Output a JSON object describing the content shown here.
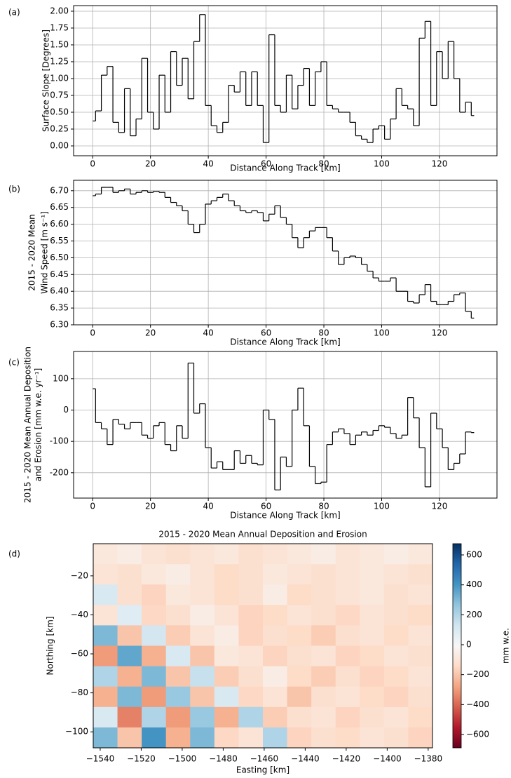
{
  "chart_data": [
    {
      "type": "line",
      "step": true,
      "panel_label": "(a)",
      "xlabel": "Distance Along Track [km]",
      "ylabel": [
        "Surface Slope [Degrees]"
      ],
      "color": "#000000",
      "grid": true,
      "xlim": [
        -6.6,
        139.9
      ],
      "ylim": [
        -0.146,
        2.083
      ],
      "xticks": [
        0,
        20,
        40,
        60,
        80,
        100,
        120
      ],
      "yticks": [
        {
          "value": 0,
          "label": "0.00"
        },
        0.25,
        {
          "value": 0.5,
          "label": "0.50"
        },
        0.75,
        {
          "value": 1,
          "label": "1.00"
        },
        1.25,
        {
          "value": 1.5,
          "label": "1.50"
        },
        1.75,
        {
          "value": 2,
          "label": "2.00"
        }
      ],
      "x": [
        0,
        2,
        4,
        6,
        8,
        10,
        12,
        14,
        16,
        18,
        20,
        22,
        24,
        26,
        28,
        30,
        32,
        34,
        36,
        38,
        40,
        42,
        44,
        46,
        48,
        50,
        52,
        54,
        56,
        58,
        60,
        62,
        64,
        66,
        68,
        70,
        72,
        74,
        76,
        78,
        80,
        82,
        84,
        86,
        88,
        90,
        92,
        94,
        96,
        98,
        100,
        102,
        104,
        106,
        108,
        110,
        112,
        114,
        116,
        118,
        120,
        122,
        124,
        126,
        128,
        130,
        132
      ],
      "series": [
        {
          "values": [
            0.37,
            0.52,
            1.05,
            1.18,
            0.35,
            0.2,
            0.85,
            0.15,
            0.4,
            1.3,
            0.5,
            0.25,
            1.05,
            0.5,
            1.4,
            0.9,
            1.3,
            0.7,
            1.55,
            1.95,
            0.6,
            0.3,
            0.2,
            0.35,
            0.9,
            0.8,
            1.1,
            0.6,
            1.1,
            0.6,
            0.05,
            1.65,
            0.6,
            0.5,
            1.05,
            0.55,
            0.9,
            1.15,
            0.6,
            1.1,
            1.25,
            0.6,
            0.55,
            0.5,
            0.5,
            0.35,
            0.15,
            0.1,
            0.05,
            0.25,
            0.3,
            0.1,
            0.4,
            0.85,
            0.6,
            0.55,
            0.3,
            1.6,
            1.85,
            0.6,
            1.4,
            1.0,
            1.55,
            1.0,
            0.5,
            0.65,
            0.45
          ]
        }
      ]
    },
    {
      "type": "line",
      "step": true,
      "panel_label": "(b)",
      "xlabel": "Distance Along Track [km]",
      "ylabel": [
        "2015 - 2020 Mean",
        "Wind Speed [m s⁻¹]"
      ],
      "color": "#000000",
      "grid": true,
      "xlim": [
        -6.6,
        139.9
      ],
      "ylim": [
        6.3,
        6.731
      ],
      "xticks": [
        0,
        20,
        40,
        60,
        80,
        100,
        120
      ],
      "yticks": [
        {
          "value": 6.3,
          "label": "6.30"
        },
        6.35,
        {
          "value": 6.4,
          "label": "6.40"
        },
        6.45,
        {
          "value": 6.5,
          "label": "6.50"
        },
        6.55,
        {
          "value": 6.6,
          "label": "6.60"
        },
        6.65,
        {
          "value": 6.7,
          "label": "6.70"
        }
      ],
      "x": [
        0,
        2,
        4,
        6,
        8,
        10,
        12,
        14,
        16,
        18,
        20,
        22,
        24,
        26,
        28,
        30,
        32,
        34,
        36,
        38,
        40,
        42,
        44,
        46,
        48,
        50,
        52,
        54,
        56,
        58,
        60,
        62,
        64,
        66,
        68,
        70,
        72,
        74,
        76,
        78,
        80,
        82,
        84,
        86,
        88,
        90,
        92,
        94,
        96,
        98,
        100,
        102,
        104,
        106,
        108,
        110,
        112,
        114,
        116,
        118,
        120,
        122,
        124,
        126,
        128,
        130,
        132
      ],
      "series": [
        {
          "values": [
            6.685,
            6.69,
            6.71,
            6.71,
            6.695,
            6.7,
            6.705,
            6.69,
            6.695,
            6.7,
            6.695,
            6.698,
            6.695,
            6.68,
            6.665,
            6.655,
            6.64,
            6.6,
            6.575,
            6.6,
            6.66,
            6.67,
            6.68,
            6.69,
            6.67,
            6.655,
            6.64,
            6.635,
            6.64,
            6.635,
            6.61,
            6.63,
            6.655,
            6.62,
            6.6,
            6.56,
            6.53,
            6.56,
            6.58,
            6.59,
            6.59,
            6.56,
            6.52,
            6.48,
            6.5,
            6.505,
            6.5,
            6.48,
            6.46,
            6.44,
            6.43,
            6.43,
            6.44,
            6.4,
            6.4,
            6.37,
            6.365,
            6.39,
            6.42,
            6.37,
            6.36,
            6.36,
            6.37,
            6.39,
            6.395,
            6.34,
            6.32
          ]
        }
      ]
    },
    {
      "type": "line",
      "step": true,
      "panel_label": "(c)",
      "xlabel": "Distance Along Track [km]",
      "ylabel": [
        "2015 - 2020 Mean Annual Deposition",
        "and Erosion [mm w.e. yr⁻¹]"
      ],
      "color": "#000000",
      "grid": true,
      "xlim": [
        -6.6,
        139.9
      ],
      "ylim": [
        -281,
        187
      ],
      "xticks": [
        0,
        20,
        40,
        60,
        80,
        100,
        120
      ],
      "yticks": [
        -200,
        -100,
        0,
        100
      ],
      "x": [
        0,
        2,
        4,
        6,
        8,
        10,
        12,
        14,
        16,
        18,
        20,
        22,
        24,
        26,
        28,
        30,
        32,
        34,
        36,
        38,
        40,
        42,
        44,
        46,
        48,
        50,
        52,
        54,
        56,
        58,
        60,
        62,
        64,
        66,
        68,
        70,
        72,
        74,
        76,
        78,
        80,
        82,
        84,
        86,
        88,
        90,
        92,
        94,
        96,
        98,
        100,
        102,
        104,
        106,
        108,
        110,
        112,
        114,
        116,
        118,
        120,
        122,
        124,
        126,
        128,
        130,
        132
      ],
      "series": [
        {
          "values": [
            68,
            -40,
            -60,
            -110,
            -30,
            -45,
            -60,
            -40,
            -40,
            -80,
            -90,
            -50,
            -40,
            -110,
            -130,
            -50,
            -90,
            150,
            -10,
            20,
            -120,
            -185,
            -165,
            -190,
            -190,
            -130,
            -170,
            -145,
            -170,
            -175,
            0,
            -30,
            -255,
            -150,
            -180,
            0,
            70,
            -50,
            -180,
            -235,
            -230,
            -110,
            -70,
            -60,
            -75,
            -110,
            -80,
            -70,
            -80,
            -65,
            -50,
            -55,
            -75,
            -90,
            -80,
            40,
            -25,
            -120,
            -245,
            -10,
            -60,
            -120,
            -190,
            -170,
            -140,
            -70,
            -72
          ]
        }
      ]
    },
    {
      "type": "heatmap",
      "panel_label": "(d)",
      "title": "2015 - 2020 Mean Annual Deposition and Erosion",
      "xlabel": "Easting [km]",
      "ylabel": "Northing [km]",
      "colorbar_label": "mm w.e.",
      "colormap": "RdBu",
      "xlim": [
        -1543.4,
        -1377.9
      ],
      "ylim": [
        -108.2,
        -3.5
      ],
      "clim": [
        -689,
        675
      ],
      "xticks": [
        {
          "value": -1540,
          "label": "−1540"
        },
        {
          "value": -1520,
          "label": "−1520"
        },
        {
          "value": -1500,
          "label": "−1500"
        },
        {
          "value": -1480,
          "label": "−1480"
        },
        {
          "value": -1460,
          "label": "−1460"
        },
        {
          "value": -1440,
          "label": "−1440"
        },
        {
          "value": -1420,
          "label": "−1420"
        },
        {
          "value": -1400,
          "label": "−1400"
        },
        {
          "value": -1380,
          "label": "−1380"
        }
      ],
      "yticks": [
        {
          "value": -100,
          "label": "−100"
        },
        {
          "value": -80,
          "label": "−80"
        },
        {
          "value": -60,
          "label": "−60"
        },
        {
          "value": -40,
          "label": "−40"
        },
        {
          "value": -20,
          "label": "−20"
        }
      ],
      "cticks": [
        {
          "value": -600,
          "label": "−600"
        },
        {
          "value": -400,
          "label": "−400"
        },
        {
          "value": -200,
          "label": "−200"
        },
        0,
        200,
        400,
        600
      ],
      "z": [
        [
          -80,
          -60,
          -100,
          -120,
          -100,
          -80,
          -120,
          -100,
          -80,
          -60,
          -100,
          -80,
          -60,
          -80
        ],
        [
          -100,
          -120,
          -80,
          -60,
          -100,
          -140,
          -120,
          -80,
          -100,
          -120,
          -100,
          -80,
          -100,
          -120
        ],
        [
          100,
          -120,
          -160,
          -80,
          -100,
          -140,
          -120,
          -60,
          -140,
          -120,
          -100,
          -80,
          -120,
          -100
        ],
        [
          -100,
          80,
          -150,
          -120,
          -60,
          -100,
          -160,
          -140,
          -100,
          -120,
          -150,
          -100,
          -120,
          -140
        ],
        [
          300,
          -200,
          120,
          -180,
          -100,
          -60,
          -160,
          -120,
          -140,
          -180,
          -120,
          -100,
          -140,
          -100
        ],
        [
          -300,
          350,
          -250,
          100,
          -200,
          -80,
          -100,
          -160,
          -120,
          -100,
          -160,
          -140,
          -100,
          -120
        ],
        [
          200,
          -250,
          300,
          -200,
          150,
          -180,
          -120,
          -60,
          -140,
          -180,
          -120,
          -160,
          -140,
          -100
        ],
        [
          -250,
          300,
          -300,
          250,
          -200,
          100,
          -150,
          -100,
          -200,
          -120,
          -100,
          -140,
          -160,
          -120
        ],
        [
          100,
          -350,
          200,
          -300,
          250,
          -250,
          200,
          -180,
          -120,
          -100,
          -160,
          -120,
          -100,
          -140
        ],
        [
          300,
          -200,
          400,
          -250,
          300,
          -150,
          -100,
          200,
          -160,
          -120,
          -140,
          -100,
          -120,
          -160
        ]
      ]
    }
  ]
}
